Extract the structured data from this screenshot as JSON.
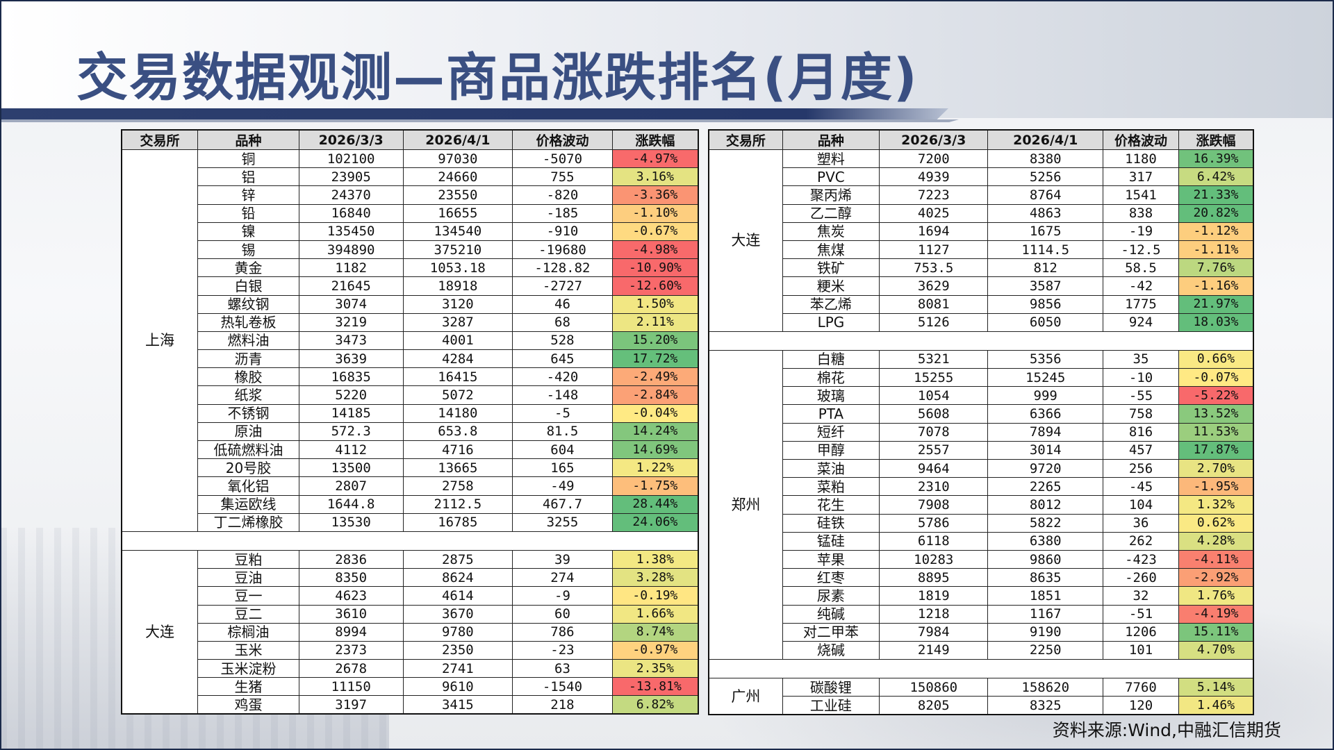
{
  "title": "交易数据观测—商品涨跌排名(月度)",
  "source": "资料来源:Wind,中融汇信期货",
  "headers": [
    "交易所",
    "品种",
    "2026/3/3",
    "2026/4/1",
    "价格波动",
    "涨跌幅"
  ],
  "left_groups": [
    {
      "exchange": "上海",
      "rows": [
        {
          "name": "铜",
          "v1": "102100",
          "v2": "97030",
          "chg": "-5070",
          "pct": "-4.97%",
          "pct_value": -4.97
        },
        {
          "name": "铝",
          "v1": "23905",
          "v2": "24660",
          "chg": "755",
          "pct": "3.16%",
          "pct_value": 3.16
        },
        {
          "name": "锌",
          "v1": "24370",
          "v2": "23550",
          "chg": "-820",
          "pct": "-3.36%",
          "pct_value": -3.36
        },
        {
          "name": "铅",
          "v1": "16840",
          "v2": "16655",
          "chg": "-185",
          "pct": "-1.10%",
          "pct_value": -1.1
        },
        {
          "name": "镍",
          "v1": "135450",
          "v2": "134540",
          "chg": "-910",
          "pct": "-0.67%",
          "pct_value": -0.67
        },
        {
          "name": "锡",
          "v1": "394890",
          "v2": "375210",
          "chg": "-19680",
          "pct": "-4.98%",
          "pct_value": -4.98
        },
        {
          "name": "黄金",
          "v1": "1182",
          "v2": "1053.18",
          "chg": "-128.82",
          "pct": "-10.90%",
          "pct_value": -10.9
        },
        {
          "name": "白银",
          "v1": "21645",
          "v2": "18918",
          "chg": "-2727",
          "pct": "-12.60%",
          "pct_value": -12.6
        },
        {
          "name": "螺纹钢",
          "v1": "3074",
          "v2": "3120",
          "chg": "46",
          "pct": "1.50%",
          "pct_value": 1.5
        },
        {
          "name": "热轧卷板",
          "v1": "3219",
          "v2": "3287",
          "chg": "68",
          "pct": "2.11%",
          "pct_value": 2.11
        },
        {
          "name": "燃料油",
          "v1": "3473",
          "v2": "4001",
          "chg": "528",
          "pct": "15.20%",
          "pct_value": 15.2
        },
        {
          "name": "沥青",
          "v1": "3639",
          "v2": "4284",
          "chg": "645",
          "pct": "17.72%",
          "pct_value": 17.72
        },
        {
          "name": "橡胶",
          "v1": "16835",
          "v2": "16415",
          "chg": "-420",
          "pct": "-2.49%",
          "pct_value": -2.49
        },
        {
          "name": "纸浆",
          "v1": "5220",
          "v2": "5072",
          "chg": "-148",
          "pct": "-2.84%",
          "pct_value": -2.84
        },
        {
          "name": "不锈钢",
          "v1": "14185",
          "v2": "14180",
          "chg": "-5",
          "pct": "-0.04%",
          "pct_value": -0.04
        },
        {
          "name": "原油",
          "v1": "572.3",
          "v2": "653.8",
          "chg": "81.5",
          "pct": "14.24%",
          "pct_value": 14.24
        },
        {
          "name": "低硫燃料油",
          "v1": "4112",
          "v2": "4716",
          "chg": "604",
          "pct": "14.69%",
          "pct_value": 14.69
        },
        {
          "name": "20号胶",
          "v1": "13500",
          "v2": "13665",
          "chg": "165",
          "pct": "1.22%",
          "pct_value": 1.22
        },
        {
          "name": "氧化铝",
          "v1": "2807",
          "v2": "2758",
          "chg": "-49",
          "pct": "-1.75%",
          "pct_value": -1.75
        },
        {
          "name": "集运欧线",
          "v1": "1644.8",
          "v2": "2112.5",
          "chg": "467.7",
          "pct": "28.44%",
          "pct_value": 28.44
        },
        {
          "name": "丁二烯橡胶",
          "v1": "13530",
          "v2": "16785",
          "chg": "3255",
          "pct": "24.06%",
          "pct_value": 24.06
        }
      ]
    },
    {
      "exchange": "大连",
      "rows": [
        {
          "name": "豆粕",
          "v1": "2836",
          "v2": "2875",
          "chg": "39",
          "pct": "1.38%",
          "pct_value": 1.38
        },
        {
          "name": "豆油",
          "v1": "8350",
          "v2": "8624",
          "chg": "274",
          "pct": "3.28%",
          "pct_value": 3.28
        },
        {
          "name": "豆一",
          "v1": "4623",
          "v2": "4614",
          "chg": "-9",
          "pct": "-0.19%",
          "pct_value": -0.19
        },
        {
          "name": "豆二",
          "v1": "3610",
          "v2": "3670",
          "chg": "60",
          "pct": "1.66%",
          "pct_value": 1.66
        },
        {
          "name": "棕榈油",
          "v1": "8994",
          "v2": "9780",
          "chg": "786",
          "pct": "8.74%",
          "pct_value": 8.74
        },
        {
          "name": "玉米",
          "v1": "2373",
          "v2": "2350",
          "chg": "-23",
          "pct": "-0.97%",
          "pct_value": -0.97
        },
        {
          "name": "玉米淀粉",
          "v1": "2678",
          "v2": "2741",
          "chg": "63",
          "pct": "2.35%",
          "pct_value": 2.35
        },
        {
          "name": "生猪",
          "v1": "11150",
          "v2": "9610",
          "chg": "-1540",
          "pct": "-13.81%",
          "pct_value": -13.81
        },
        {
          "name": "鸡蛋",
          "v1": "3197",
          "v2": "3415",
          "chg": "218",
          "pct": "6.82%",
          "pct_value": 6.82
        }
      ]
    }
  ],
  "right_groups": [
    {
      "exchange": "大连",
      "rows": [
        {
          "name": "塑料",
          "v1": "7200",
          "v2": "8380",
          "chg": "1180",
          "pct": "16.39%",
          "pct_value": 16.39
        },
        {
          "name": "PVC",
          "v1": "4939",
          "v2": "5256",
          "chg": "317",
          "pct": "6.42%",
          "pct_value": 6.42
        },
        {
          "name": "聚丙烯",
          "v1": "7223",
          "v2": "8764",
          "chg": "1541",
          "pct": "21.33%",
          "pct_value": 21.33
        },
        {
          "name": "乙二醇",
          "v1": "4025",
          "v2": "4863",
          "chg": "838",
          "pct": "20.82%",
          "pct_value": 20.82
        },
        {
          "name": "焦炭",
          "v1": "1694",
          "v2": "1675",
          "chg": "-19",
          "pct": "-1.12%",
          "pct_value": -1.12
        },
        {
          "name": "焦煤",
          "v1": "1127",
          "v2": "1114.5",
          "chg": "-12.5",
          "pct": "-1.11%",
          "pct_value": -1.11
        },
        {
          "name": "铁矿",
          "v1": "753.5",
          "v2": "812",
          "chg": "58.5",
          "pct": "7.76%",
          "pct_value": 7.76
        },
        {
          "name": "粳米",
          "v1": "3629",
          "v2": "3587",
          "chg": "-42",
          "pct": "-1.16%",
          "pct_value": -1.16
        },
        {
          "name": "苯乙烯",
          "v1": "8081",
          "v2": "9856",
          "chg": "1775",
          "pct": "21.97%",
          "pct_value": 21.97
        },
        {
          "name": "LPG",
          "v1": "5126",
          "v2": "6050",
          "chg": "924",
          "pct": "18.03%",
          "pct_value": 18.03
        }
      ]
    },
    {
      "exchange": "郑州",
      "rows": [
        {
          "name": "白糖",
          "v1": "5321",
          "v2": "5356",
          "chg": "35",
          "pct": "0.66%",
          "pct_value": 0.66
        },
        {
          "name": "棉花",
          "v1": "15255",
          "v2": "15245",
          "chg": "-10",
          "pct": "-0.07%",
          "pct_value": -0.07
        },
        {
          "name": "玻璃",
          "v1": "1054",
          "v2": "999",
          "chg": "-55",
          "pct": "-5.22%",
          "pct_value": -5.22
        },
        {
          "name": "PTA",
          "v1": "5608",
          "v2": "6366",
          "chg": "758",
          "pct": "13.52%",
          "pct_value": 13.52
        },
        {
          "name": "短纤",
          "v1": "7078",
          "v2": "7894",
          "chg": "816",
          "pct": "11.53%",
          "pct_value": 11.53
        },
        {
          "name": "甲醇",
          "v1": "2557",
          "v2": "3014",
          "chg": "457",
          "pct": "17.87%",
          "pct_value": 17.87
        },
        {
          "name": "菜油",
          "v1": "9464",
          "v2": "9720",
          "chg": "256",
          "pct": "2.70%",
          "pct_value": 2.7
        },
        {
          "name": "菜粕",
          "v1": "2310",
          "v2": "2265",
          "chg": "-45",
          "pct": "-1.95%",
          "pct_value": -1.95
        },
        {
          "name": "花生",
          "v1": "7908",
          "v2": "8012",
          "chg": "104",
          "pct": "1.32%",
          "pct_value": 1.32
        },
        {
          "name": "硅铁",
          "v1": "5786",
          "v2": "5822",
          "chg": "36",
          "pct": "0.62%",
          "pct_value": 0.62
        },
        {
          "name": "锰硅",
          "v1": "6118",
          "v2": "6380",
          "chg": "262",
          "pct": "4.28%",
          "pct_value": 4.28
        },
        {
          "name": "苹果",
          "v1": "10283",
          "v2": "9860",
          "chg": "-423",
          "pct": "-4.11%",
          "pct_value": -4.11
        },
        {
          "name": "红枣",
          "v1": "8895",
          "v2": "8635",
          "chg": "-260",
          "pct": "-2.92%",
          "pct_value": -2.92
        },
        {
          "name": "尿素",
          "v1": "1819",
          "v2": "1851",
          "chg": "32",
          "pct": "1.76%",
          "pct_value": 1.76
        },
        {
          "name": "纯碱",
          "v1": "1218",
          "v2": "1167",
          "chg": "-51",
          "pct": "-4.19%",
          "pct_value": -4.19
        },
        {
          "name": "对二甲苯",
          "v1": "7984",
          "v2": "9190",
          "chg": "1206",
          "pct": "15.11%",
          "pct_value": 15.11
        },
        {
          "name": "烧碱",
          "v1": "2149",
          "v2": "2250",
          "chg": "101",
          "pct": "4.70%",
          "pct_value": 4.7
        }
      ]
    },
    {
      "exchange": "广州",
      "rows": [
        {
          "name": "碳酸锂",
          "v1": "150860",
          "v2": "158620",
          "chg": "7760",
          "pct": "5.14%",
          "pct_value": 5.14
        },
        {
          "name": "工业硅",
          "v1": "8205",
          "v2": "8325",
          "chg": "120",
          "pct": "1.46%",
          "pct_value": 1.46
        }
      ]
    }
  ],
  "heatmap_colors": {
    "negative_max": "#f8696b",
    "neutral": "#ffeb84",
    "positive_max": "#63be7b"
  }
}
